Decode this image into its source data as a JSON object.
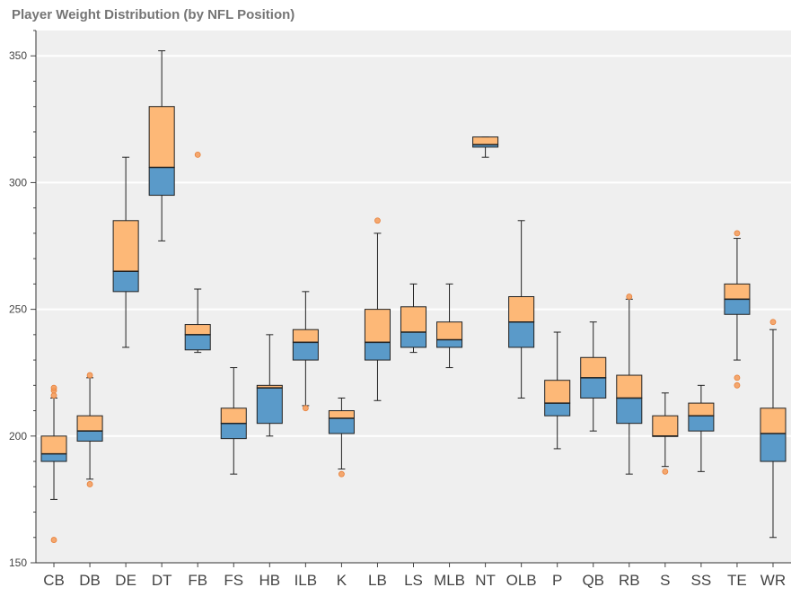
{
  "chart_data": {
    "type": "box",
    "title": "Player Weight Distribution (by NFL Position)",
    "xlabel": "",
    "ylabel": "",
    "ylim": [
      150,
      360
    ],
    "yticks": [
      150,
      200,
      250,
      300,
      350
    ],
    "grid": "horizontal",
    "colors": {
      "upper_box": "#fdb877",
      "lower_box": "#5a9ac9",
      "outlier": "#f59a57",
      "background": "#efefef",
      "gridline": "#ffffff",
      "title": "#757575"
    },
    "categories": [
      "CB",
      "DB",
      "DE",
      "DT",
      "FB",
      "FS",
      "HB",
      "ILB",
      "K",
      "LB",
      "LS",
      "MLB",
      "NT",
      "OLB",
      "P",
      "QB",
      "RB",
      "S",
      "SS",
      "TE",
      "WR"
    ],
    "boxes": [
      {
        "label": "CB",
        "lower": 175,
        "q1": 190,
        "median": 193,
        "q3": 200,
        "upper": 215,
        "outliers": [
          159,
          216,
          218,
          219
        ]
      },
      {
        "label": "DB",
        "lower": 183,
        "q1": 198,
        "median": 202,
        "q3": 208,
        "upper": 223,
        "outliers": [
          181,
          224
        ]
      },
      {
        "label": "DE",
        "lower": 235,
        "q1": 257,
        "median": 265,
        "q3": 285,
        "upper": 310,
        "outliers": []
      },
      {
        "label": "DT",
        "lower": 277,
        "q1": 295,
        "median": 306,
        "q3": 330,
        "upper": 352,
        "outliers": []
      },
      {
        "label": "FB",
        "lower": 233,
        "q1": 234,
        "median": 240,
        "q3": 244,
        "upper": 258,
        "outliers": [
          311
        ]
      },
      {
        "label": "FS",
        "lower": 185,
        "q1": 199,
        "median": 205,
        "q3": 211,
        "upper": 227,
        "outliers": []
      },
      {
        "label": "HB",
        "lower": 200,
        "q1": 205,
        "median": 219,
        "q3": 220,
        "upper": 240,
        "outliers": []
      },
      {
        "label": "ILB",
        "lower": 212,
        "q1": 230,
        "median": 237,
        "q3": 242,
        "upper": 257,
        "outliers": [
          211
        ]
      },
      {
        "label": "K",
        "lower": 187,
        "q1": 201,
        "median": 207,
        "q3": 210,
        "upper": 215,
        "outliers": [
          185
        ]
      },
      {
        "label": "LB",
        "lower": 214,
        "q1": 230,
        "median": 237,
        "q3": 250,
        "upper": 280,
        "outliers": [
          285
        ]
      },
      {
        "label": "LS",
        "lower": 233,
        "q1": 235,
        "median": 241,
        "q3": 251,
        "upper": 260,
        "outliers": []
      },
      {
        "label": "MLB",
        "lower": 227,
        "q1": 235,
        "median": 238,
        "q3": 245,
        "upper": 260,
        "outliers": []
      },
      {
        "label": "NT",
        "lower": 310,
        "q1": 314,
        "median": 315,
        "q3": 318,
        "upper": 318,
        "outliers": []
      },
      {
        "label": "OLB",
        "lower": 215,
        "q1": 235,
        "median": 245,
        "q3": 255,
        "upper": 285,
        "outliers": []
      },
      {
        "label": "P",
        "lower": 195,
        "q1": 208,
        "median": 213,
        "q3": 222,
        "upper": 241,
        "outliers": []
      },
      {
        "label": "QB",
        "lower": 202,
        "q1": 215,
        "median": 223,
        "q3": 231,
        "upper": 245,
        "outliers": []
      },
      {
        "label": "RB",
        "lower": 185,
        "q1": 205,
        "median": 215,
        "q3": 224,
        "upper": 254,
        "outliers": [
          255
        ]
      },
      {
        "label": "S",
        "lower": 188,
        "q1": 200,
        "median": 200,
        "q3": 208,
        "upper": 217,
        "outliers": [
          186
        ]
      },
      {
        "label": "SS",
        "lower": 186,
        "q1": 202,
        "median": 208,
        "q3": 213,
        "upper": 220,
        "outliers": []
      },
      {
        "label": "TE",
        "lower": 230,
        "q1": 248,
        "median": 254,
        "q3": 260,
        "upper": 278,
        "outliers": [
          220,
          223,
          280
        ]
      },
      {
        "label": "WR",
        "lower": 160,
        "q1": 190,
        "median": 201,
        "q3": 211,
        "upper": 242,
        "outliers": [
          245
        ]
      }
    ]
  }
}
